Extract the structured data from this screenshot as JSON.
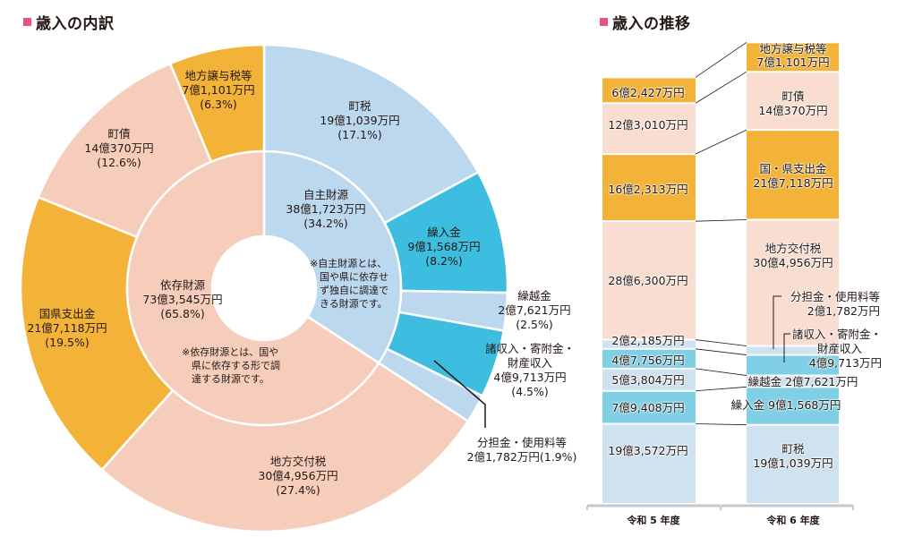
{
  "left_title": "歳入の内訳",
  "right_title": "歳入の推移",
  "colors": {
    "title_marker": "#e95383",
    "light_blue": "#bcd8ef",
    "cyan": "#3dbde0",
    "orange": "#f3b338",
    "peach": "#f6cdbb",
    "bar_light_blue": "#cfe2f1",
    "bar_cyan": "#7fcfe6",
    "bar_peach": "#f8ddd0"
  },
  "chart_data": [
    {
      "type": "pie",
      "title": "歳入の内訳",
      "inner_ring": [
        {
          "name": "自主財源",
          "amount": "38億1,723万円",
          "percent": 34.2,
          "percent_label": "(34.2%)",
          "color": "#bcd8ef",
          "note": [
            "※自主財源とは、",
            "国や県に依存せ",
            "ず独自に調達で",
            "きる財源です。"
          ]
        },
        {
          "name": "依存財源",
          "amount": "73億3,545万円",
          "percent": 65.8,
          "percent_label": "(65.8%)",
          "color": "#f6cdbb",
          "note": [
            "※依存財源とは、国や",
            "県に依存する形で調",
            "達する財源です。"
          ]
        }
      ],
      "outer_ring": [
        {
          "name": "町税",
          "amount": "19億1,039万円",
          "percent": 17.1,
          "percent_label": "(17.1%)",
          "color": "#bcd8ef"
        },
        {
          "name": "繰入金",
          "amount": "9億1,568万円",
          "percent": 8.2,
          "percent_label": "(8.2%)",
          "color": "#3dbde0"
        },
        {
          "name": "繰越金",
          "amount": "2億7,621万円",
          "percent": 2.5,
          "percent_label": "(2.5%)",
          "color": "#bcd8ef"
        },
        {
          "name": "諸収入・寄附金・",
          "name2": "財産収入",
          "amount": "4億9,713万円",
          "percent": 4.5,
          "percent_label": "(4.5%)",
          "color": "#3dbde0"
        },
        {
          "name": "分担金・使用料等",
          "amount": "2億1,782万円",
          "percent": 1.9,
          "percent_label": "(1.9%)",
          "color": "#bcd8ef"
        },
        {
          "name": "地方交付税",
          "amount": "30億4,956万円",
          "percent": 27.4,
          "percent_label": "(27.4%)",
          "color": "#f6cdbb"
        },
        {
          "name": "国県支出金",
          "amount": "21億7,118万円",
          "percent": 19.5,
          "percent_label": "(19.5%)",
          "color": "#f3b338"
        },
        {
          "name": "町債",
          "amount": "14億370万円",
          "percent": 12.6,
          "percent_label": "(12.6%)",
          "color": "#f6cdbb"
        },
        {
          "name": "地方譲与税等",
          "amount": "7億1,101万円",
          "percent": 6.3,
          "percent_label": "(6.3%)",
          "color": "#f3b338"
        }
      ]
    },
    {
      "type": "bar",
      "stacked": true,
      "title": "歳入の推移",
      "categories": [
        "令和 5 年度",
        "令和 6 年度"
      ],
      "unit": "万円",
      "series": [
        {
          "name": "町税",
          "values": [
            193572,
            191039
          ],
          "labels": [
            "19億3,572万円",
            "19億1,039万円"
          ],
          "color": "#cfe2f1"
        },
        {
          "name": "繰入金",
          "values": [
            79408,
            91568
          ],
          "labels": [
            "7億9,408万円",
            "9億1,568万円"
          ],
          "color": "#7fcfe6"
        },
        {
          "name": "繰越金",
          "values": [
            53804,
            27621
          ],
          "labels": [
            "5億3,804万円",
            "2億7,621万円"
          ],
          "color": "#cfe2f1"
        },
        {
          "name": "諸収入・寄附金・財産収入",
          "values": [
            47756,
            49713
          ],
          "labels": [
            "4億7,756万円",
            "4億9,713万円"
          ],
          "color": "#7fcfe6"
        },
        {
          "name": "分担金・使用料等",
          "values": [
            22185,
            21782
          ],
          "labels": [
            "2億2,185万円",
            "2億1,782万円"
          ],
          "color": "#cfe2f1"
        },
        {
          "name": "地方交付税",
          "values": [
            286300,
            304956
          ],
          "labels": [
            "28億6,300万円",
            "30億4,956万円"
          ],
          "color": "#f8ddd0"
        },
        {
          "name": "国・県支出金",
          "values": [
            162313,
            217118
          ],
          "labels": [
            "16億2,313万円",
            "21億7,118万円"
          ],
          "color": "#f3b338"
        },
        {
          "name": "町債",
          "values": [
            123010,
            140370
          ],
          "labels": [
            "12億3,010万円",
            "14億370万円"
          ],
          "color": "#f8ddd0"
        },
        {
          "name": "地方譲与税等",
          "values": [
            62427,
            71101
          ],
          "labels": [
            "6億2,427万円",
            "7億1,101万円"
          ],
          "color": "#f3b338"
        }
      ],
      "r6_labels": {
        "machizei": "町税",
        "kurinyu": "繰入金",
        "kurikoshi": "繰越金",
        "shoshunyu1": "諸収入・寄附金・",
        "shoshunyu2": "財産収入",
        "buntan": "分担金・使用料等",
        "kofuzei": "地方交付税",
        "kokuken": "国・県支出金",
        "chosai": "町債",
        "joyo": "地方譲与税等"
      }
    }
  ]
}
